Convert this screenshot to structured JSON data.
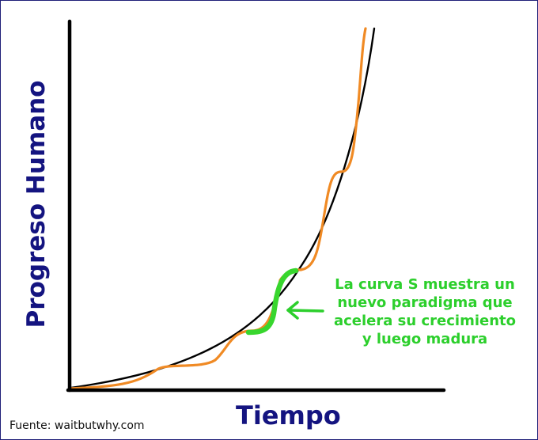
{
  "title": "",
  "axes": {
    "ylabel": "Progreso Humano",
    "xlabel": "Tiempo"
  },
  "annotation": {
    "lines": [
      "La curva S muestra un",
      "nuevo paradigma que",
      "acelera su crecimiento",
      "y luego madura"
    ]
  },
  "source": "Fuente: waitbutwhy.com",
  "curves": [
    {
      "id": "exponential-trend",
      "shape": "smooth exponential",
      "color": "#000000"
    },
    {
      "id": "stacked-s-curves",
      "shape": "chain of S-curves",
      "color": "#f08a24"
    },
    {
      "id": "highlighted-s-curve",
      "shape": "single S-curve",
      "color": "#38d62e"
    }
  ],
  "colors": {
    "axis": "#000000",
    "label": "#141480",
    "annotation": "#2ccf2c",
    "frame": "#1f1f78"
  }
}
